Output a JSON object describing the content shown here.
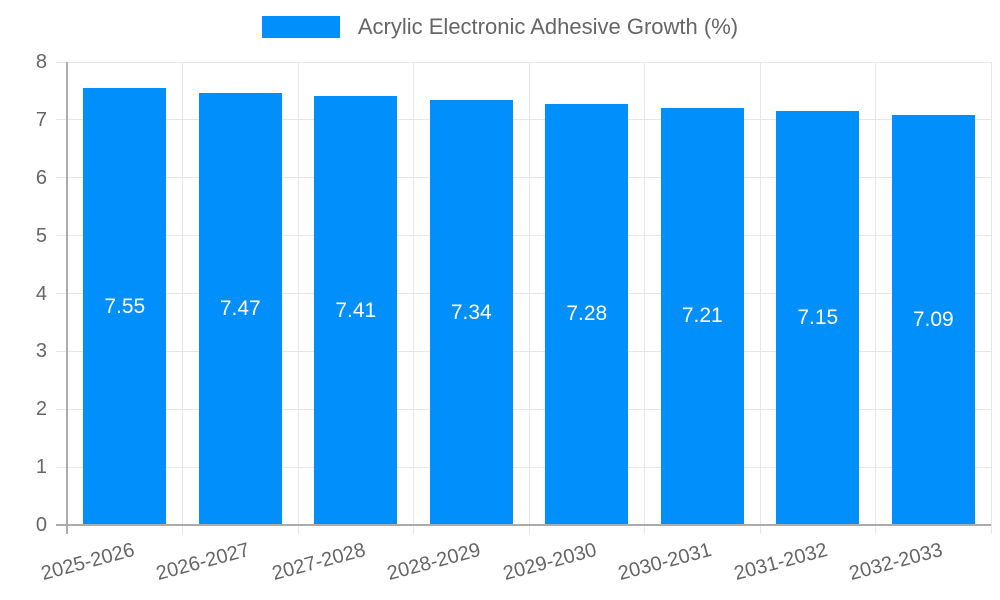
{
  "chart_data": {
    "type": "bar",
    "title": "Acrylic Electronic Adhesive Growth (%)",
    "categories": [
      "2025-2026",
      "2026-2027",
      "2027-2028",
      "2028-2029",
      "2029-2030",
      "2030-2031",
      "2031-2032",
      "2032-2033"
    ],
    "values": [
      7.55,
      7.47,
      7.41,
      7.34,
      7.28,
      7.21,
      7.15,
      7.09
    ],
    "value_labels": [
      "7.55",
      "7.47",
      "7.41",
      "7.34",
      "7.28",
      "7.21",
      "7.15",
      "7.09"
    ],
    "ytick_labels": [
      "0",
      "1",
      "2",
      "3",
      "4",
      "5",
      "6",
      "7",
      "8"
    ],
    "ylim": [
      0,
      8
    ],
    "ytick_step": 1,
    "xlabel": "",
    "ylabel": "",
    "grid": true,
    "legend_position": "top",
    "colors": {
      "bar": "#008FFB",
      "grid": "#E7E7E7",
      "axis": "#ABABAB",
      "text": "#666666",
      "bar_label": "#FFFFFF",
      "background": "#FFFFFF"
    }
  }
}
